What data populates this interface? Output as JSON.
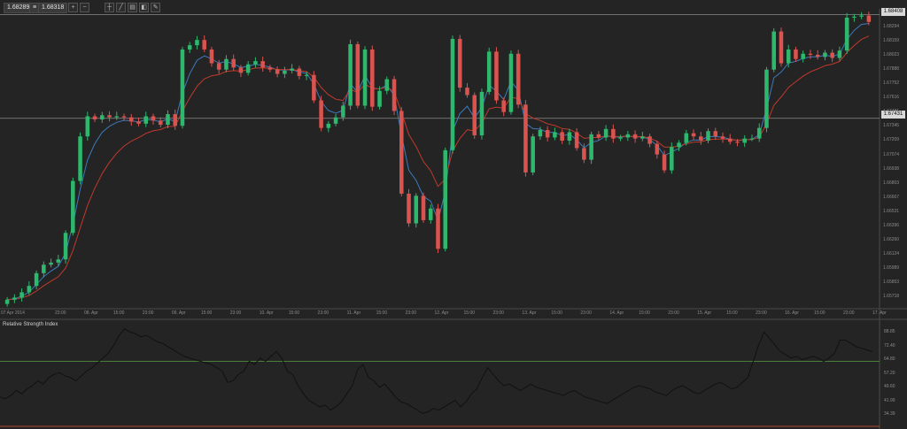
{
  "toolbar": {
    "bid": "1.68289",
    "separator": "≡",
    "ask": "1.68318",
    "buttons": [
      "zoom-in-icon",
      "zoom-out-icon",
      "crosshair-icon",
      "line-tool-icon",
      "layers-icon",
      "indicator-icon",
      "draw-icon"
    ]
  },
  "price_tags": {
    "last": "1.68408",
    "level": "1.67431"
  },
  "rsi": {
    "title": "Relative Strength Index"
  },
  "colors": {
    "bull": "#2eb86d",
    "bear": "#d9534f",
    "ma_fast": "#3a7bbd",
    "ma_slow": "#c0392b",
    "rsi": "#111111",
    "rsi_upper": "#4a7f3a",
    "rsi_lower": "#b04a2e"
  },
  "chart_data": [
    {
      "type": "candlestick",
      "y_tick_labels": [
        "1.68408",
        "1.68294",
        "1.68159",
        "1.68023",
        "1.67888",
        "1.67752",
        "1.67616",
        "1.67481",
        "1.67345",
        "1.67209",
        "1.67074",
        "1.66938",
        "1.66803",
        "1.66667",
        "1.66531",
        "1.66396",
        "1.66260",
        "1.66124",
        "1.65989",
        "1.65853",
        "1.65718"
      ],
      "x_tick_labels": [
        "07 Apr 2014",
        "23:00",
        "08. Apr",
        "15:00",
        "23:00",
        "09. Apr",
        "15:00",
        "23:00",
        "10. Apr",
        "15:00",
        "23:00",
        "11. Apr",
        "15:00",
        "23:00",
        "12. Apr",
        "15:00",
        "23:00",
        "13. Apr",
        "15:00",
        "23:00",
        "14. Apr",
        "15:00",
        "23:00",
        "15. Apr",
        "15:00",
        "23:00",
        "16. Apr",
        "15:00",
        "23:00",
        "17. Apr"
      ],
      "ylim": [
        1.6566,
        1.6843
      ],
      "horizontal_lines": [
        1.68408,
        1.67431
      ],
      "series": [
        {
          "name": "",
          "kind": "ohlc",
          "close": [
            1.6572,
            1.6574,
            1.6579,
            1.6585,
            1.6597,
            1.6605,
            1.6607,
            1.661,
            1.6635,
            1.6684,
            1.6726,
            1.6745,
            1.6742,
            1.6746,
            1.6744,
            1.6745,
            1.6744,
            1.674,
            1.6738,
            1.6745,
            1.6741,
            1.6737,
            1.6747,
            1.6736,
            1.6808,
            1.6812,
            1.6817,
            1.6808,
            1.6795,
            1.6789,
            1.6799,
            1.6791,
            1.6786,
            1.6794,
            1.6797,
            1.6791,
            1.6789,
            1.6785,
            1.6788,
            1.679,
            1.6783,
            1.6784,
            1.676,
            1.6734,
            1.6738,
            1.6744,
            1.6755,
            1.6813,
            1.6755,
            1.6808,
            1.6754,
            1.6769,
            1.678,
            1.675,
            1.6672,
            1.6644,
            1.667,
            1.6647,
            1.6658,
            1.662,
            1.6713,
            1.6818,
            1.6772,
            1.6765,
            1.6727,
            1.6768,
            1.6806,
            1.676,
            1.6749,
            1.6804,
            1.6756,
            1.6692,
            1.6726,
            1.6732,
            1.6725,
            1.673,
            1.6722,
            1.673,
            1.6715,
            1.6704,
            1.6728,
            1.6725,
            1.6733,
            1.6724,
            1.6725,
            1.6728,
            1.6724,
            1.6726,
            1.6719,
            1.6709,
            1.6694,
            1.6716,
            1.672,
            1.6729,
            1.6726,
            1.6722,
            1.6731,
            1.6726,
            1.6724,
            1.6721,
            1.672,
            1.6724,
            1.6724,
            1.6734,
            1.6789,
            1.6825,
            1.6795,
            1.6808,
            1.6799,
            1.6804,
            1.6803,
            1.6801,
            1.6805,
            1.68,
            1.6807,
            1.6838,
            1.6839,
            1.684,
            1.6834
          ]
        },
        {
          "name": "",
          "kind": "moving_average_fast"
        },
        {
          "name": "",
          "kind": "moving_average_slow"
        }
      ]
    },
    {
      "type": "line",
      "title": "Relative Strength Index",
      "y_tick_labels": [
        "88.85",
        "72.40",
        "64.80",
        "57.20",
        "49.60",
        "41.99",
        "34.39"
      ],
      "ylim": [
        30,
        92
      ],
      "horizontal_lines": [
        70,
        30
      ],
      "series": [
        {
          "name": "",
          "values": [
            48,
            47,
            49,
            52,
            50,
            53,
            55,
            58,
            56,
            60,
            62,
            63,
            61,
            60,
            58,
            61,
            64,
            66,
            69,
            72,
            75,
            80,
            86,
            90,
            88,
            87,
            85,
            86,
            84,
            82,
            81,
            79,
            77,
            75,
            73,
            72,
            71,
            70,
            69,
            68,
            66,
            64,
            57,
            58,
            62,
            64,
            70,
            68,
            72,
            70,
            73,
            76,
            72,
            64,
            62,
            55,
            50,
            46,
            44,
            42,
            43,
            40,
            42,
            45,
            50,
            55,
            65,
            68,
            60,
            58,
            54,
            56,
            52,
            48,
            45,
            44,
            42,
            40,
            38,
            39,
            41,
            40,
            42,
            44,
            46,
            42,
            45,
            50,
            53,
            60,
            66,
            62,
            58,
            55,
            56,
            54,
            52,
            54,
            56,
            54,
            53,
            52,
            51,
            50,
            49,
            51,
            52,
            50,
            48,
            47,
            46,
            45,
            44,
            46,
            48,
            50,
            52,
            54,
            55,
            54,
            53,
            51,
            50,
            49,
            52,
            54,
            55,
            53,
            51,
            50,
            52,
            54,
            56,
            57,
            55,
            53,
            54,
            57,
            60,
            70,
            80,
            88,
            84,
            80,
            76,
            74,
            72,
            73,
            71,
            72,
            73,
            72,
            70,
            72,
            75,
            83,
            83,
            81,
            79,
            78,
            77,
            76
          ]
        }
      ]
    }
  ]
}
